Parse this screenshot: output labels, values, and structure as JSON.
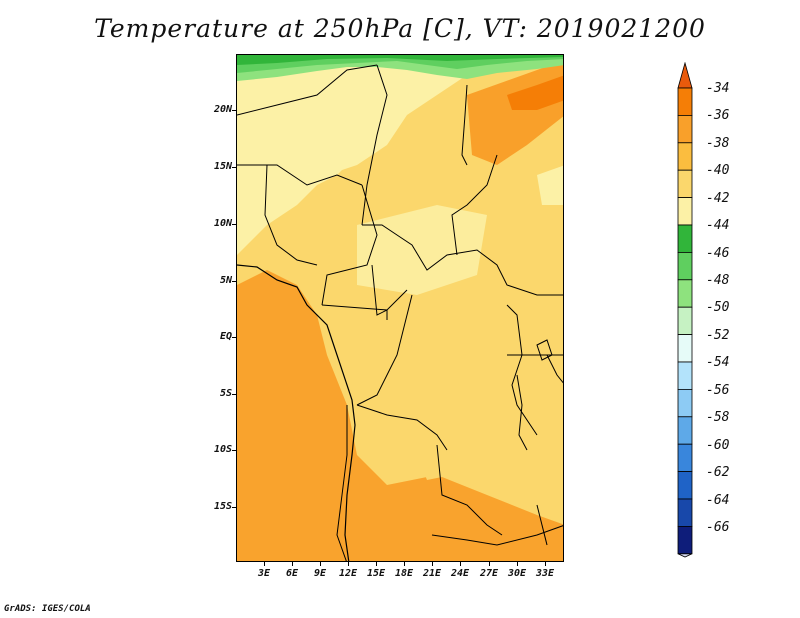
{
  "title": "Temperature at 250hPa [C], VT: 2019021200",
  "credit": "GrADS: IGES/COLA",
  "map": {
    "lat_labels": [
      "20N",
      "15N",
      "10N",
      "5N",
      "EQ",
      "5S",
      "10S",
      "15S"
    ],
    "lon_labels": [
      "3E",
      "6E",
      "9E",
      "12E",
      "15E",
      "18E",
      "21E",
      "24E",
      "27E",
      "30E",
      "33E"
    ]
  },
  "colorbar": {
    "labels": [
      "-34",
      "-36",
      "-38",
      "-40",
      "-42",
      "-44",
      "-46",
      "-48",
      "-50",
      "-52",
      "-54",
      "-56",
      "-58",
      "-60",
      "-62",
      "-64",
      "-66"
    ],
    "colors": [
      "#e85a0c",
      "#f57e06",
      "#f9a02a",
      "#fbbd3f",
      "#fbd76c",
      "#fcf1a6",
      "#31b53a",
      "#5fcf5f",
      "#8ee27e",
      "#c6f2c3",
      "#e6fbf8",
      "#b3e3fb",
      "#8dcbf4",
      "#5ea9e8",
      "#3986dc",
      "#1f63c7",
      "#1848aa",
      "#0e1d7a",
      "#d8dcf4"
    ]
  }
}
